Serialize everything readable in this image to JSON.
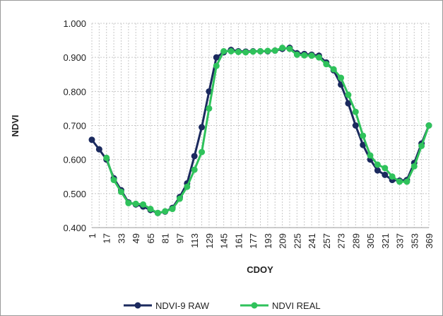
{
  "chart_data": {
    "type": "line",
    "x_label": "CDOY",
    "y_label": "NDVI",
    "x": [
      1,
      9,
      17,
      25,
      33,
      41,
      49,
      57,
      65,
      73,
      81,
      89,
      97,
      105,
      113,
      121,
      129,
      137,
      145,
      153,
      161,
      169,
      177,
      185,
      193,
      201,
      209,
      217,
      225,
      233,
      241,
      249,
      257,
      265,
      273,
      281,
      289,
      297,
      305,
      313,
      321,
      329,
      337,
      345,
      353,
      361,
      369
    ],
    "series": [
      {
        "name": "NDVI-9 RAW",
        "color": "#1b2a5e",
        "values": [
          0.658,
          0.63,
          0.6,
          0.545,
          0.51,
          0.474,
          0.468,
          0.462,
          0.452,
          0.443,
          0.447,
          0.458,
          0.49,
          0.53,
          0.61,
          0.695,
          0.8,
          0.9,
          0.915,
          0.922,
          0.918,
          0.917,
          0.918,
          0.918,
          0.918,
          0.92,
          0.925,
          0.928,
          0.912,
          0.91,
          0.908,
          0.905,
          0.885,
          0.862,
          0.82,
          0.765,
          0.7,
          0.643,
          0.6,
          0.568,
          0.555,
          0.54,
          0.538,
          0.54,
          0.59,
          0.647,
          0.7
        ]
      },
      {
        "name": "NDVI REAL",
        "color": "#2fc25b",
        "values": [
          null,
          null,
          0.605,
          0.54,
          0.505,
          0.472,
          0.47,
          0.468,
          0.455,
          0.443,
          0.448,
          0.455,
          0.485,
          0.52,
          0.57,
          0.622,
          0.75,
          0.875,
          0.918,
          0.918,
          0.916,
          0.915,
          0.917,
          0.918,
          0.919,
          0.92,
          0.928,
          0.925,
          0.908,
          0.906,
          0.905,
          0.9,
          0.88,
          0.865,
          0.84,
          0.79,
          0.74,
          0.67,
          0.612,
          0.585,
          0.575,
          0.55,
          0.535,
          0.535,
          0.58,
          0.64,
          0.7
        ]
      }
    ],
    "xlim": [
      1,
      369
    ],
    "xticks": [
      1,
      17,
      33,
      49,
      65,
      81,
      97,
      113,
      129,
      145,
      161,
      177,
      193,
      209,
      225,
      241,
      257,
      273,
      289,
      305,
      321,
      337,
      353,
      369
    ],
    "ylim": [
      0.4,
      1.0
    ],
    "yticks": [
      {
        "value": 0.4,
        "label": "0.400"
      },
      {
        "value": 0.5,
        "label": "0.500"
      },
      {
        "value": 0.6,
        "label": "0.600"
      },
      {
        "value": 0.7,
        "label": "0.700"
      },
      {
        "value": 0.8,
        "label": "0.800"
      },
      {
        "value": 0.9,
        "label": "0.900"
      },
      {
        "value": 1.0,
        "label": "1.000"
      }
    ],
    "grid": true,
    "legend": "bottom"
  }
}
